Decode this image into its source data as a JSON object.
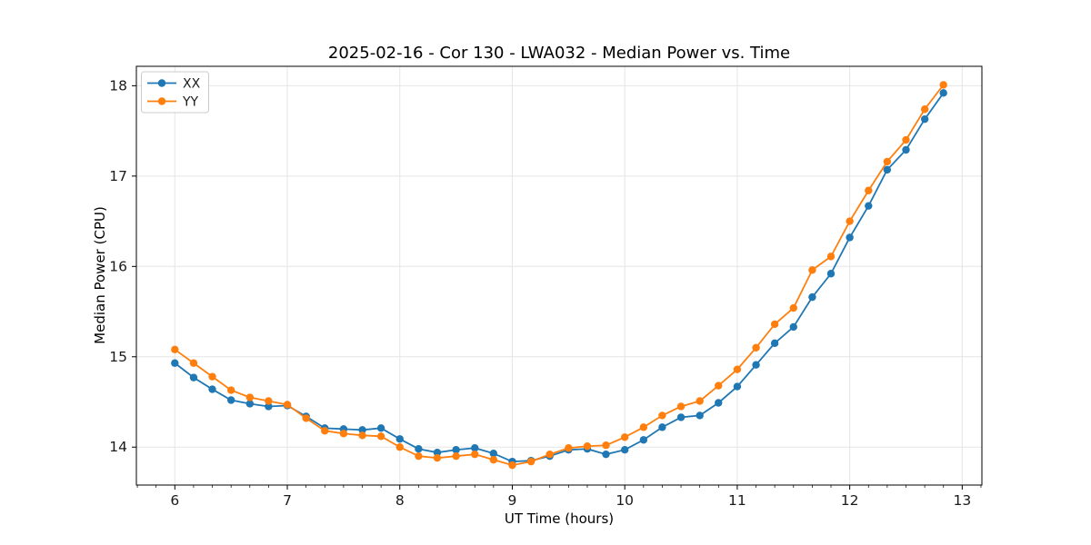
{
  "figure": {
    "background": "#ffffff"
  },
  "chart_data": {
    "type": "line",
    "title": "2025-02-16 - Cor 130 - LWA032 - Median Power vs. Time",
    "xlabel": "UT Time (hours)",
    "ylabel": "Median Power (CPU)",
    "xlim": [
      5.658,
      13.175
    ],
    "ylim": [
      13.58,
      18.215
    ],
    "x_ticks": [
      6,
      7,
      8,
      9,
      10,
      11,
      12,
      13
    ],
    "y_ticks": [
      14,
      15,
      16,
      17,
      18
    ],
    "x_minor_tick_step": 0.1666667,
    "grid": true,
    "grid_color": "#e5e5e5",
    "axis_color": "#000000",
    "text_color": "#1a1a1a",
    "legend": {
      "position": "upper-left",
      "entries": [
        "XX",
        "YY"
      ]
    },
    "x": [
      6.0,
      6.167,
      6.333,
      6.5,
      6.667,
      6.833,
      7.0,
      7.167,
      7.333,
      7.5,
      7.667,
      7.833,
      8.0,
      8.167,
      8.333,
      8.5,
      8.667,
      8.833,
      9.0,
      9.167,
      9.333,
      9.5,
      9.667,
      9.833,
      10.0,
      10.167,
      10.333,
      10.5,
      10.667,
      10.833,
      11.0,
      11.167,
      11.333,
      11.5,
      11.667,
      11.833,
      12.0,
      12.167,
      12.333,
      12.5,
      12.667,
      12.833
    ],
    "series": [
      {
        "name": "XX",
        "color": "#1f77b4",
        "values": [
          14.93,
          14.77,
          14.64,
          14.52,
          14.48,
          14.45,
          14.46,
          14.34,
          14.21,
          14.2,
          14.19,
          14.21,
          14.09,
          13.98,
          13.94,
          13.97,
          13.99,
          13.93,
          13.84,
          13.85,
          13.9,
          13.97,
          13.98,
          13.92,
          13.97,
          14.08,
          14.22,
          14.33,
          14.35,
          14.49,
          14.67,
          14.91,
          15.15,
          15.33,
          15.66,
          15.92,
          16.32,
          16.67,
          17.07,
          17.29,
          17.63,
          17.92
        ]
      },
      {
        "name": "YY",
        "color": "#ff7f0e",
        "values": [
          15.08,
          14.93,
          14.78,
          14.63,
          14.55,
          14.51,
          14.47,
          14.32,
          14.18,
          14.15,
          14.13,
          14.12,
          14.0,
          13.9,
          13.88,
          13.9,
          13.92,
          13.86,
          13.8,
          13.84,
          13.92,
          13.99,
          14.01,
          14.02,
          14.11,
          14.22,
          14.35,
          14.45,
          14.51,
          14.68,
          14.86,
          15.1,
          15.36,
          15.54,
          15.96,
          16.11,
          16.5,
          16.84,
          17.16,
          17.4,
          17.74,
          18.01
        ]
      }
    ]
  }
}
